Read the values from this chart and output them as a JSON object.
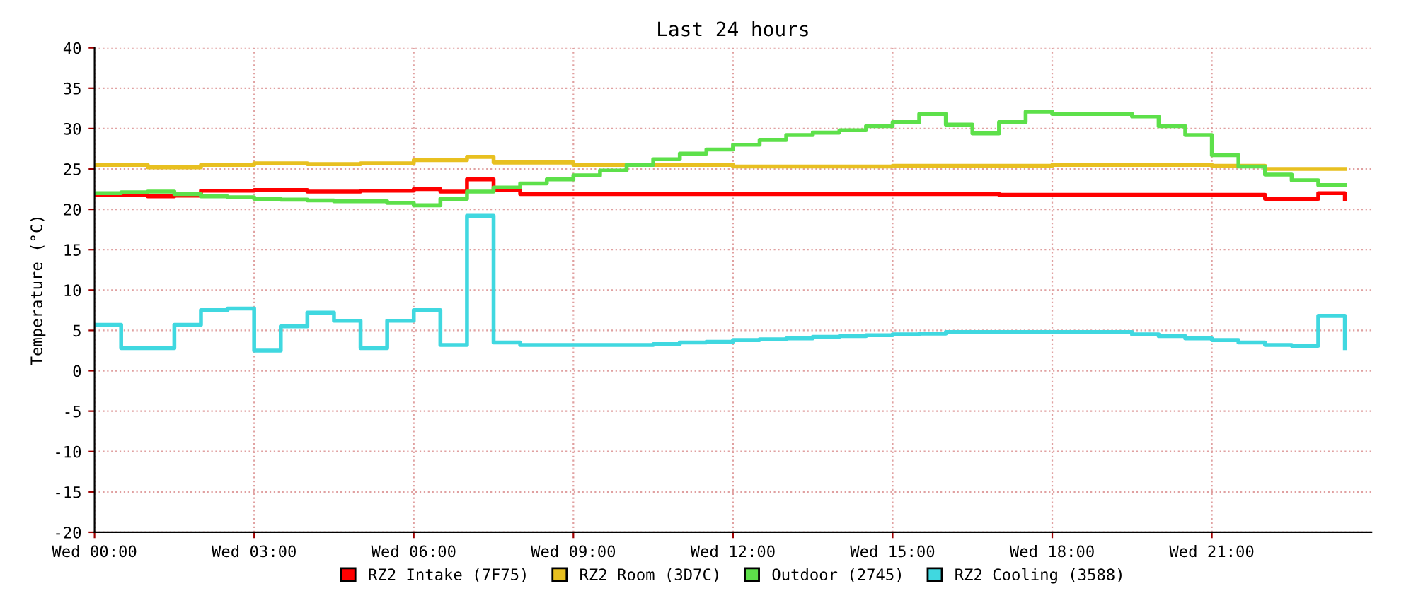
{
  "chart_data": {
    "type": "step",
    "title": "Last 24 hours",
    "ylabel": "Temperature (°C)",
    "ylim": [
      -20,
      40
    ],
    "yticks": [
      -20,
      -15,
      -10,
      -5,
      0,
      5,
      10,
      15,
      20,
      25,
      30,
      35,
      40
    ],
    "categories": [
      "Wed 00:00",
      null,
      null,
      null,
      null,
      null,
      "Wed 03:00",
      null,
      null,
      null,
      null,
      null,
      "Wed 06:00",
      null,
      null,
      null,
      null,
      null,
      "Wed 09:00",
      null,
      null,
      null,
      null,
      null,
      "Wed 12:00",
      null,
      null,
      null,
      null,
      null,
      "Wed 15:00",
      null,
      null,
      null,
      null,
      null,
      "Wed 18:00",
      null,
      null,
      null,
      null,
      null,
      "Wed 21:00",
      null,
      null,
      null,
      null,
      null
    ],
    "grid": true,
    "legend": "bottom",
    "series": [
      {
        "name": "RZ2 Intake (7F75)",
        "color": "#ff0000",
        "values": [
          21.8,
          21.8,
          21.6,
          21.7,
          22.3,
          22.3,
          22.4,
          22.4,
          22.2,
          22.2,
          22.3,
          22.3,
          22.5,
          22.2,
          23.7,
          22.4,
          21.9,
          21.9,
          21.9,
          21.9,
          21.9,
          21.9,
          21.9,
          21.9,
          21.9,
          21.9,
          21.9,
          21.9,
          21.9,
          21.9,
          21.9,
          21.9,
          21.9,
          21.9,
          21.8,
          21.8,
          21.8,
          21.8,
          21.8,
          21.8,
          21.8,
          21.8,
          21.8,
          21.8,
          21.3,
          21.3,
          22.0,
          21.3
        ]
      },
      {
        "name": "RZ2 Room (3D7C)",
        "color": "#e8c020",
        "values": [
          25.5,
          25.5,
          25.2,
          25.2,
          25.5,
          25.5,
          25.7,
          25.7,
          25.6,
          25.6,
          25.7,
          25.7,
          26.1,
          26.1,
          26.5,
          25.8,
          25.8,
          25.8,
          25.5,
          25.5,
          25.5,
          25.5,
          25.5,
          25.5,
          25.3,
          25.3,
          25.3,
          25.3,
          25.3,
          25.3,
          25.4,
          25.4,
          25.4,
          25.4,
          25.4,
          25.4,
          25.5,
          25.5,
          25.5,
          25.5,
          25.5,
          25.5,
          25.4,
          25.4,
          25.0,
          25.0,
          25.0,
          25.0
        ]
      },
      {
        "name": "Outdoor (2745)",
        "color": "#5de04a",
        "values": [
          22,
          22.1,
          22.2,
          21.9,
          21.6,
          21.5,
          21.3,
          21.2,
          21.1,
          21.0,
          21.0,
          20.8,
          20.5,
          21.3,
          22.2,
          22.7,
          23.2,
          23.7,
          24.2,
          24.8,
          25.5,
          26.2,
          26.9,
          27.4,
          28,
          28.6,
          29.2,
          29.5,
          29.8,
          30.3,
          30.8,
          31.8,
          30.5,
          29.4,
          30.8,
          32.1,
          31.8,
          31.8,
          31.8,
          31.5,
          30.3,
          29.2,
          26.7,
          25.3,
          24.3,
          23.6,
          23.0,
          23.0
        ]
      },
      {
        "name": "RZ2 Cooling (3588)",
        "color": "#40d8e0",
        "values": [
          5.7,
          2.8,
          2.8,
          5.7,
          7.5,
          7.7,
          2.5,
          5.5,
          7.2,
          6.2,
          2.8,
          6.2,
          7.5,
          3.2,
          19.2,
          3.5,
          3.2,
          3.2,
          3.2,
          3.2,
          3.2,
          3.3,
          3.5,
          3.6,
          3.8,
          3.9,
          4.0,
          4.2,
          4.3,
          4.4,
          4.5,
          4.6,
          4.8,
          4.8,
          4.8,
          4.8,
          4.8,
          4.8,
          4.8,
          4.5,
          4.3,
          4.0,
          3.8,
          3.5,
          3.2,
          3.1,
          6.8,
          2.8
        ]
      }
    ]
  }
}
